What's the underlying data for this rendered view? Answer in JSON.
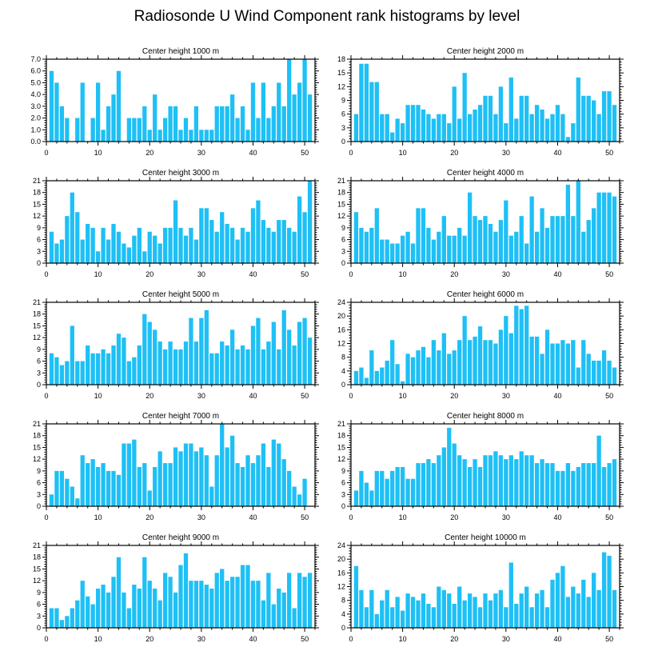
{
  "title": "Radiosonde U Wind Component rank histograms by level",
  "colors": {
    "bar": "#1EC0F5",
    "axis": "#000000"
  },
  "chart_data": [
    {
      "type": "bar",
      "title": "Center height 1000 m",
      "xlim": [
        0,
        52
      ],
      "ylim": [
        0,
        7
      ],
      "yticks": [
        0,
        1,
        2,
        3,
        4,
        5,
        6,
        7
      ],
      "yticklabels": [
        "0.0",
        "1.0",
        "2.0",
        "3.0",
        "4.0",
        "5.0",
        "6.0",
        "7.0"
      ],
      "xticks": [
        0,
        10,
        20,
        30,
        40,
        50
      ],
      "values": [
        6,
        5,
        3,
        2,
        0,
        2,
        5,
        0,
        2,
        5,
        1,
        3,
        4,
        6,
        0,
        2,
        2,
        2,
        3,
        1,
        4,
        1,
        2,
        3,
        3,
        1,
        2,
        1,
        3,
        1,
        1,
        1,
        3,
        3,
        3,
        4,
        2,
        3,
        1,
        5,
        2,
        5,
        2,
        3,
        5,
        3,
        7,
        4,
        5,
        7,
        4
      ]
    },
    {
      "type": "bar",
      "title": "Center height 2000 m",
      "xlim": [
        0,
        52
      ],
      "ylim": [
        0,
        18
      ],
      "yticks": [
        0,
        3,
        6,
        9,
        12,
        15,
        18
      ],
      "yticklabels": [
        "0",
        "3",
        "6",
        "9",
        "12",
        "15",
        "18"
      ],
      "xticks": [
        0,
        10,
        20,
        30,
        40,
        50
      ],
      "values": [
        6,
        17,
        17,
        13,
        13,
        6,
        6,
        2,
        5,
        4,
        8,
        8,
        8,
        7,
        6,
        5,
        6,
        6,
        4,
        12,
        5,
        15,
        6,
        7,
        8,
        10,
        10,
        6,
        12,
        4,
        14,
        5,
        10,
        10,
        6,
        8,
        7,
        5,
        6,
        8,
        6,
        1,
        4,
        14,
        10,
        10,
        9,
        6,
        11,
        11,
        8
      ]
    },
    {
      "type": "bar",
      "title": "Center height 3000 m",
      "xlim": [
        0,
        52
      ],
      "ylim": [
        0,
        21
      ],
      "yticks": [
        0,
        3,
        6,
        9,
        12,
        15,
        18,
        21
      ],
      "yticklabels": [
        "0",
        "3",
        "6",
        "9",
        "12",
        "15",
        "18",
        "21"
      ],
      "xticks": [
        0,
        10,
        20,
        30,
        40,
        50
      ],
      "values": [
        8,
        5,
        6,
        12,
        18,
        13,
        6,
        10,
        9,
        3,
        9,
        6,
        10,
        8,
        5,
        4,
        7,
        9,
        3,
        8,
        7,
        5,
        9,
        9,
        16,
        9,
        7,
        9,
        6,
        14,
        14,
        11,
        8,
        13,
        10,
        9,
        6,
        9,
        8,
        14,
        16,
        11,
        9,
        8,
        11,
        11,
        9,
        8,
        17,
        13,
        21
      ]
    },
    {
      "type": "bar",
      "title": "Center height 4000 m",
      "xlim": [
        0,
        52
      ],
      "ylim": [
        0,
        21
      ],
      "yticks": [
        0,
        3,
        6,
        9,
        12,
        15,
        18,
        21
      ],
      "yticklabels": [
        "0",
        "3",
        "6",
        "9",
        "12",
        "15",
        "18",
        "21"
      ],
      "xticks": [
        0,
        10,
        20,
        30,
        40,
        50
      ],
      "values": [
        13,
        9,
        8,
        9,
        14,
        6,
        6,
        5,
        5,
        7,
        8,
        5,
        14,
        14,
        9,
        6,
        8,
        12,
        7,
        7,
        9,
        7,
        18,
        12,
        11,
        12,
        10,
        8,
        11,
        16,
        7,
        8,
        12,
        5,
        17,
        8,
        14,
        9,
        12,
        12,
        12,
        20,
        12,
        21,
        8,
        11,
        14,
        18,
        18,
        18,
        17
      ]
    },
    {
      "type": "bar",
      "title": "Center height 5000 m",
      "xlim": [
        0,
        52
      ],
      "ylim": [
        0,
        21
      ],
      "yticks": [
        0,
        3,
        6,
        9,
        12,
        15,
        18,
        21
      ],
      "yticklabels": [
        "0",
        "3",
        "6",
        "9",
        "12",
        "15",
        "18",
        "21"
      ],
      "xticks": [
        0,
        10,
        20,
        30,
        40,
        50
      ],
      "values": [
        8,
        7,
        5,
        6,
        15,
        6,
        6,
        10,
        8,
        8,
        9,
        8,
        10,
        13,
        12,
        6,
        7,
        10,
        18,
        16,
        14,
        11,
        9,
        11,
        9,
        9,
        11,
        17,
        11,
        17,
        19,
        8,
        8,
        11,
        10,
        14,
        9,
        10,
        9,
        15,
        17,
        9,
        11,
        16,
        9,
        19,
        14,
        10,
        16,
        17,
        12
      ]
    },
    {
      "type": "bar",
      "title": "Center height 6000 m",
      "xlim": [
        0,
        52
      ],
      "ylim": [
        0,
        24
      ],
      "yticks": [
        0,
        4,
        8,
        12,
        16,
        20,
        24
      ],
      "yticklabels": [
        "0",
        "4",
        "8",
        "12",
        "16",
        "20",
        "24"
      ],
      "xticks": [
        0,
        10,
        20,
        30,
        40,
        50
      ],
      "values": [
        4,
        5,
        2,
        10,
        4,
        5,
        7,
        13,
        6,
        1,
        9,
        8,
        10,
        11,
        8,
        13,
        10,
        15,
        9,
        10,
        13,
        20,
        13,
        14,
        17,
        13,
        13,
        12,
        16,
        20,
        15,
        23,
        22,
        23,
        14,
        14,
        9,
        16,
        12,
        12,
        13,
        12,
        13,
        5,
        13,
        9,
        7,
        7,
        10,
        7,
        5
      ]
    },
    {
      "type": "bar",
      "title": "Center height 7000 m",
      "xlim": [
        0,
        52
      ],
      "ylim": [
        0,
        21
      ],
      "yticks": [
        0,
        3,
        6,
        9,
        12,
        15,
        18,
        21
      ],
      "yticklabels": [
        "0",
        "3",
        "6",
        "9",
        "12",
        "15",
        "18",
        "21"
      ],
      "xticks": [
        0,
        10,
        20,
        30,
        40,
        50
      ],
      "values": [
        3,
        9,
        9,
        7,
        5,
        2,
        13,
        11,
        12,
        10,
        11,
        9,
        9,
        8,
        16,
        16,
        17,
        10,
        11,
        4,
        10,
        14,
        11,
        11,
        15,
        14,
        16,
        16,
        14,
        15,
        13,
        5,
        13,
        21,
        15,
        18,
        11,
        10,
        13,
        11,
        13,
        16,
        10,
        17,
        16,
        12,
        9,
        5,
        3,
        7,
        0
      ]
    },
    {
      "type": "bar",
      "title": "Center height 8000 m",
      "xlim": [
        0,
        52
      ],
      "ylim": [
        0,
        21
      ],
      "yticks": [
        0,
        3,
        6,
        9,
        12,
        15,
        18,
        21
      ],
      "yticklabels": [
        "0",
        "3",
        "6",
        "9",
        "12",
        "15",
        "18",
        "21"
      ],
      "xticks": [
        0,
        10,
        20,
        30,
        40,
        50
      ],
      "values": [
        4,
        9,
        6,
        4,
        9,
        9,
        7,
        9,
        10,
        10,
        7,
        7,
        11,
        11,
        12,
        11,
        13,
        15,
        20,
        16,
        13,
        12,
        10,
        12,
        10,
        13,
        13,
        14,
        13,
        12,
        13,
        12,
        14,
        13,
        13,
        11,
        12,
        11,
        11,
        9,
        9,
        11,
        9,
        10,
        11,
        11,
        11,
        18,
        10,
        11,
        12
      ]
    },
    {
      "type": "bar",
      "title": "Center height 9000 m",
      "xlim": [
        0,
        52
      ],
      "ylim": [
        0,
        21
      ],
      "yticks": [
        0,
        3,
        6,
        9,
        12,
        15,
        18,
        21
      ],
      "yticklabels": [
        "0",
        "3",
        "6",
        "9",
        "12",
        "15",
        "18",
        "21"
      ],
      "xticks": [
        0,
        10,
        20,
        30,
        40,
        50
      ],
      "values": [
        5,
        5,
        2,
        3,
        5,
        7,
        12,
        8,
        6,
        10,
        11,
        9,
        13,
        18,
        9,
        5,
        11,
        10,
        18,
        12,
        10,
        7,
        14,
        13,
        9,
        16,
        19,
        12,
        12,
        12,
        11,
        10,
        14,
        15,
        12,
        13,
        13,
        16,
        16,
        12,
        12,
        7,
        14,
        6,
        10,
        9,
        14,
        5,
        14,
        13,
        14
      ]
    },
    {
      "type": "bar",
      "title": "Center height 10000 m",
      "xlim": [
        0,
        52
      ],
      "ylim": [
        0,
        24
      ],
      "yticks": [
        0,
        4,
        8,
        12,
        16,
        20,
        24
      ],
      "yticklabels": [
        "0",
        "4",
        "8",
        "12",
        "16",
        "20",
        "24"
      ],
      "xticks": [
        0,
        10,
        20,
        30,
        40,
        50
      ],
      "values": [
        18,
        11,
        6,
        11,
        4,
        8,
        11,
        6,
        9,
        5,
        10,
        9,
        8,
        10,
        7,
        6,
        12,
        11,
        10,
        7,
        12,
        8,
        10,
        9,
        6,
        10,
        8,
        10,
        11,
        6,
        19,
        7,
        10,
        12,
        6,
        10,
        11,
        6,
        14,
        16,
        18,
        9,
        12,
        10,
        14,
        9,
        16,
        11,
        22,
        21,
        11
      ]
    }
  ]
}
